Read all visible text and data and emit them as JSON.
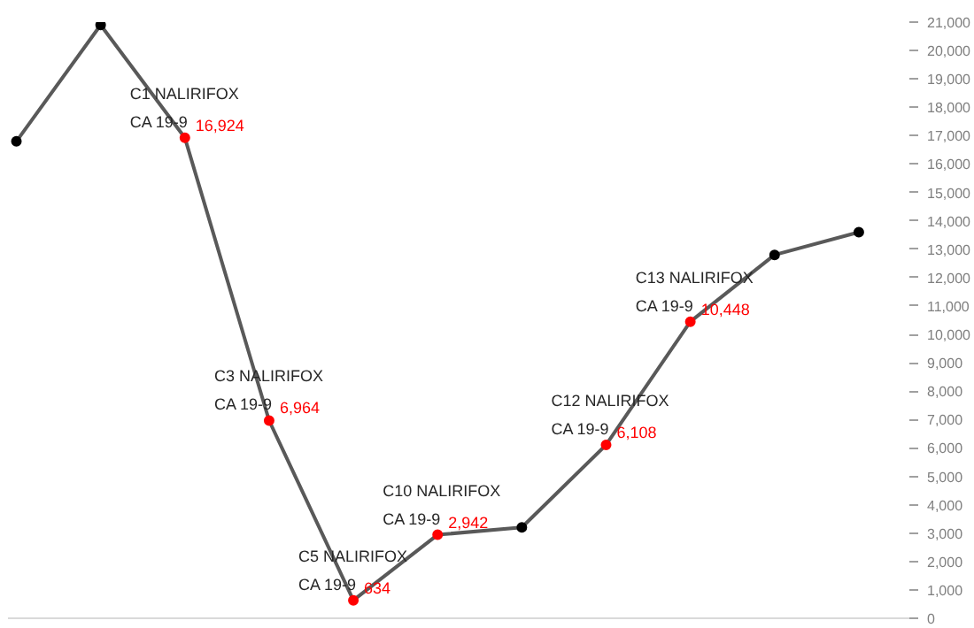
{
  "chart_data": {
    "type": "line",
    "categories": [
      null,
      null,
      null,
      null,
      null,
      null,
      null,
      null,
      null,
      null,
      null
    ],
    "series": [
      {
        "color": "#595959",
        "values": [
          16800,
          20900,
          16924,
          6964,
          634,
          2942,
          3200,
          6108,
          10448,
          12800,
          13600
        ],
        "colors": [
          "#000000",
          "#000000",
          "#ff0000",
          "#ff0000",
          "#ff0000",
          "#ff0000",
          "#000000",
          "#ff0000",
          "#ff0000",
          "#000000",
          "#000000"
        ],
        "value_labels": [
          null,
          null,
          "16,924",
          "6,964",
          "634",
          "2,942",
          null,
          "6,108",
          "10,448",
          null,
          null
        ]
      }
    ],
    "annotations": [
      "C1 NALIRIFOX\nCA 19-9",
      "C3 NALIRIFOX\nCA 19-9",
      "C5 NALIRIFOX\nCA 19-9",
      "C10 NALIRIFOX\nCA 19-9",
      "C12 NALIRIFOX\nCA 19-9",
      "C13 NALIRIFOX\nCA 19-9"
    ],
    "ylim": [
      0,
      21000
    ],
    "yticks": [
      {
        "value": 0,
        "label": "0"
      },
      {
        "value": 1000,
        "label": "1,000"
      },
      {
        "value": 2000,
        "label": "2,000"
      },
      {
        "value": 3000,
        "label": "3,000"
      },
      {
        "value": 4000,
        "label": "4,000"
      },
      {
        "value": 5000,
        "label": "5,000"
      },
      {
        "value": 6000,
        "label": "6,000"
      },
      {
        "value": 7000,
        "label": "7,000"
      },
      {
        "value": 8000,
        "label": "8,000"
      },
      {
        "value": 9000,
        "label": "9,000"
      },
      {
        "value": 10000,
        "label": "10,000"
      },
      {
        "value": 11000,
        "label": "11,000"
      },
      {
        "value": 12000,
        "label": "12,000"
      },
      {
        "value": 13000,
        "label": "13,000"
      },
      {
        "value": 14000,
        "label": "14,000"
      },
      {
        "value": 15000,
        "label": "15,000"
      },
      {
        "value": 16000,
        "label": "16,000"
      },
      {
        "value": 17000,
        "label": "17,000"
      },
      {
        "value": 18000,
        "label": "18,000"
      },
      {
        "value": 19000,
        "label": "19,000"
      },
      {
        "value": 20000,
        "label": "20,000"
      },
      {
        "value": 21000,
        "label": "21,000"
      }
    ],
    "tick_labels": "y",
    "marker": "circle",
    "line_style": "solid"
  }
}
